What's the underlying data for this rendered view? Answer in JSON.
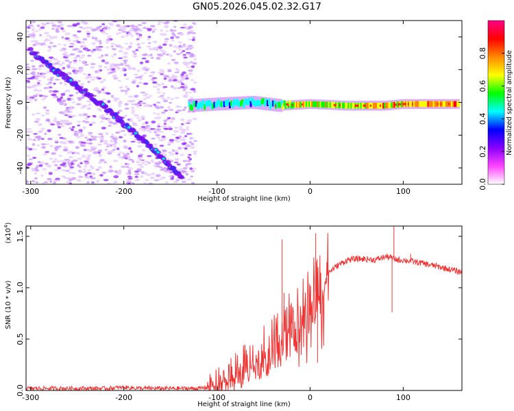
{
  "title": "GN05.2026.045.02.32.G17",
  "chart_data": [
    {
      "type": "heatmap",
      "xlabel": "Height of straight line (km)",
      "ylabel": "Frequency (Hz)",
      "xlim": [
        -305,
        163
      ],
      "ylim": [
        -50,
        50
      ],
      "xticks": [
        -300,
        -200,
        -100,
        0,
        100
      ],
      "yticks": [
        -40,
        -20,
        0,
        20,
        40
      ],
      "colorbar": {
        "label": "Normalized spectral amplitude",
        "range": [
          0,
          1
        ],
        "ticks": [
          "0.0",
          "0.2",
          "0.4",
          "0.6",
          "0.8"
        ],
        "tick_values": [
          0.0,
          0.2,
          0.4,
          0.6,
          0.8
        ],
        "colors": [
          "#ffffff",
          "#ff44ff",
          "#8800ff",
          "#0000ff",
          "#00ffff",
          "#00ff00",
          "#ffff00",
          "#ff8800",
          "#ff0000",
          "#ff0088"
        ]
      },
      "features": {
        "descending_trace": {
          "x": [
            -300,
            -280,
            -250,
            -220,
            -190,
            -160,
            -138
          ],
          "y": [
            32,
            22,
            10,
            -3,
            -18,
            -33,
            -46
          ]
        },
        "flat_trace": {
          "x": [
            -130,
            -100,
            -60,
            -30,
            0,
            40,
            80,
            100,
            160
          ],
          "y": [
            -2,
            -1,
            0,
            -2,
            -1,
            -2,
            -2,
            -1,
            -1
          ]
        },
        "noise_cutoff_x": -123
      }
    },
    {
      "type": "line",
      "xlabel": "Height of straight line (km)",
      "ylabel": "SNR (10 * v/v)",
      "yscale_label": "(x10",
      "yscale_exp": "4",
      "xlim": [
        -305,
        163
      ],
      "ylim": [
        0,
        1.6
      ],
      "xticks": [
        -300,
        -200,
        -100,
        0,
        100
      ],
      "yticks": [
        0.0,
        0.5,
        1.0,
        1.5
      ],
      "ytick_labels": [
        "0.0",
        "0.5",
        "1.0",
        "1.5"
      ],
      "line_color": "#ee3333",
      "series": [
        {
          "x": [
            -305,
            -280,
            -250,
            -220,
            -200,
            -180,
            -150,
            -120,
            -110,
            -100,
            -90,
            -80,
            -70,
            -60,
            -50,
            -40,
            -30,
            -25,
            -20,
            -10,
            0,
            5,
            10,
            15,
            20,
            30,
            40,
            50,
            60,
            70,
            80,
            85,
            90,
            95,
            100,
            120,
            140,
            163
          ],
          "y": [
            0.02,
            0.02,
            0.02,
            0.02,
            0.03,
            0.02,
            0.02,
            0.02,
            0.03,
            0.07,
            0.12,
            0.18,
            0.25,
            0.3,
            0.38,
            0.45,
            0.55,
            0.6,
            0.65,
            0.75,
            0.85,
            0.95,
            1.0,
            1.1,
            1.15,
            1.22,
            1.27,
            1.28,
            1.28,
            1.27,
            1.3,
            1.3,
            1.28,
            1.27,
            1.27,
            1.24,
            1.2,
            1.15
          ]
        }
      ],
      "spikes": [
        {
          "x": -30,
          "y": 1.47
        },
        {
          "x": -28,
          "y": 0.95
        },
        {
          "x": -20,
          "y": 0.85
        },
        {
          "x": 6,
          "y": 1.53
        },
        {
          "x": 8,
          "y": 0.27
        },
        {
          "x": 90,
          "y": 1.6
        },
        {
          "x": 88,
          "y": 0.76
        },
        {
          "x": 108,
          "y": 1.33
        }
      ]
    }
  ]
}
